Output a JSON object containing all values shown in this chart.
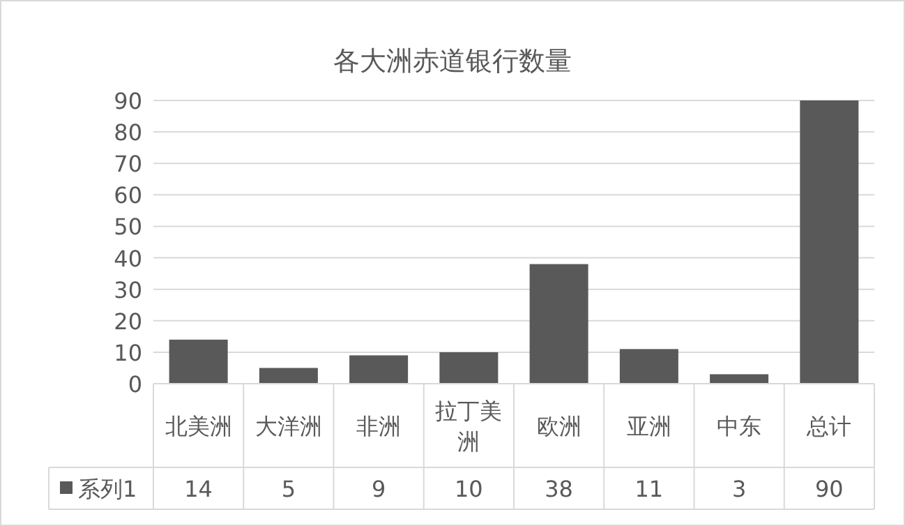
{
  "chart_data": {
    "type": "bar",
    "title": "各大洲赤道银行数量",
    "categories": [
      "北美洲",
      "大洋洲",
      "非洲",
      "拉丁美洲",
      "欧洲",
      "亚洲",
      "中东",
      "总计"
    ],
    "series": [
      {
        "name": "系列1",
        "color": "#595959",
        "values": [
          14,
          5,
          9,
          10,
          38,
          11,
          3,
          90
        ]
      }
    ],
    "ylim": [
      0,
      90
    ],
    "yticks": [
      0,
      10,
      20,
      30,
      40,
      50,
      60,
      70,
      80,
      90
    ],
    "grid": "y",
    "legend": "bottom",
    "data_labels": true
  }
}
